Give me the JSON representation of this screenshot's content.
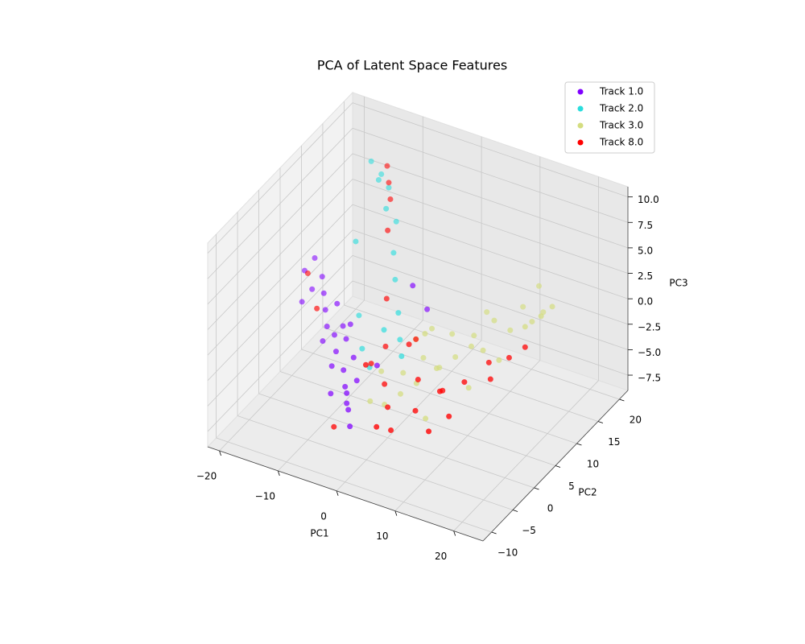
{
  "chart_data": {
    "type": "scatter3d",
    "title": "PCA of Latent Space Features",
    "xlabel": "PC1",
    "ylabel": "PC2",
    "zlabel": "PC3",
    "xlim": [
      -22,
      25
    ],
    "ylim": [
      -12,
      22
    ],
    "zlim": [
      -9,
      11
    ],
    "xticks": [
      {
        "value": -20,
        "label": "−20"
      },
      {
        "value": -10,
        "label": "−10"
      },
      0,
      10,
      20
    ],
    "yticks": [
      {
        "value": -10,
        "label": "−10"
      },
      {
        "value": -5,
        "label": "−5"
      },
      0,
      5,
      10,
      15,
      20
    ],
    "zticks": [
      {
        "value": -7.5,
        "label": "−7.5"
      },
      {
        "value": -5,
        "label": "−5.0"
      },
      {
        "value": -2.5,
        "label": "−2.5"
      },
      {
        "value": 0,
        "label": "0.0"
      },
      2.5,
      {
        "value": 5,
        "label": "5.0"
      },
      7.5,
      {
        "value": 10,
        "label": "10.0"
      }
    ],
    "grid": true,
    "legend": "upper right",
    "series": [
      {
        "name": "Track 1.0",
        "color": "#8000ff",
        "x": [
          -20,
          -19,
          -18,
          -17,
          -19,
          -16,
          -15,
          -14,
          -13,
          -12,
          -11,
          -10,
          -9,
          -8,
          -7,
          -6,
          -5,
          -6,
          -8,
          -10,
          -12,
          -14,
          -3,
          -2,
          -4,
          -9,
          -11,
          -7
        ],
        "y": [
          8,
          9,
          7,
          8,
          6,
          7,
          6,
          5,
          6,
          4,
          3,
          4,
          2,
          1,
          0,
          -1,
          -2,
          1,
          3,
          5,
          6,
          4,
          10,
          12,
          3,
          -1,
          2,
          0
        ],
        "z": [
          0,
          1,
          -1,
          0,
          -2,
          -1,
          -2,
          -3,
          -1,
          -3,
          -4,
          -3,
          -5,
          -6,
          -6,
          -7,
          -8,
          -5,
          -4,
          -2,
          -3,
          -4,
          1,
          -2,
          -4,
          -6,
          -5,
          -7
        ]
      },
      {
        "name": "Track 2.0",
        "color": "#2adddd",
        "x": [
          -13,
          -12,
          -11,
          -10,
          -9,
          -8,
          -7,
          -6,
          -4,
          -12,
          -5,
          -3,
          -8,
          -10,
          -6,
          -2
        ],
        "y": [
          14,
          15,
          13,
          14,
          12,
          13,
          11,
          10,
          8,
          9,
          6,
          7,
          5,
          7,
          4,
          6
        ],
        "z": [
          9.5,
          8,
          8.5,
          7.5,
          6.5,
          5,
          3,
          1,
          -1,
          4,
          -2,
          -3,
          -4,
          -2,
          -5,
          -4
        ]
      },
      {
        "name": "Track 3.0",
        "color": "#d4dd80",
        "x": [
          15,
          13,
          12,
          10,
          8,
          6,
          14,
          11,
          9,
          5,
          3,
          1,
          -1,
          -3,
          0,
          2,
          4,
          7,
          -2,
          10,
          12,
          6,
          -4,
          8,
          3,
          5,
          1,
          16,
          -1,
          2
        ],
        "y": [
          18,
          16,
          19,
          15,
          14,
          12,
          13,
          11,
          10,
          9,
          8,
          7,
          5,
          0,
          3,
          4,
          6,
          10,
          2,
          18,
          20,
          15,
          4,
          8,
          11,
          2,
          9,
          14,
          8,
          6
        ],
        "z": [
          -1,
          -2,
          0,
          -3,
          -2,
          -3,
          -1,
          -4,
          -3,
          -4,
          -5,
          -4,
          -5,
          -6,
          -6,
          -5,
          -4,
          -3,
          -7,
          -2,
          -3,
          -2,
          -5,
          -6,
          -3,
          -7,
          -2,
          0,
          -3,
          -1
        ]
      },
      {
        "name": "Track 8.0",
        "color": "#ff0000",
        "x": [
          -10,
          -11,
          -9,
          -8,
          -18,
          -15,
          -6,
          -4,
          -2,
          0,
          2,
          4,
          6,
          8,
          10,
          12,
          14,
          -3,
          1,
          3,
          5,
          -1,
          -5,
          7,
          9,
          -7,
          0,
          11
        ],
        "y": [
          14,
          15,
          13,
          11,
          6,
          4,
          8,
          5,
          2,
          0,
          -2,
          1,
          4,
          7,
          10,
          12,
          13,
          -1,
          -4,
          3,
          6,
          8,
          3,
          0,
          2,
          -3,
          5,
          9
        ],
        "z": [
          8,
          9,
          7,
          5,
          1,
          -1,
          0,
          -3,
          -5,
          -6,
          -7,
          -6,
          -5,
          -5,
          -4,
          -4,
          -3,
          -2,
          -6,
          -4,
          -6,
          -3,
          -4,
          -7,
          -6,
          -8,
          -2,
          -5
        ]
      }
    ]
  }
}
